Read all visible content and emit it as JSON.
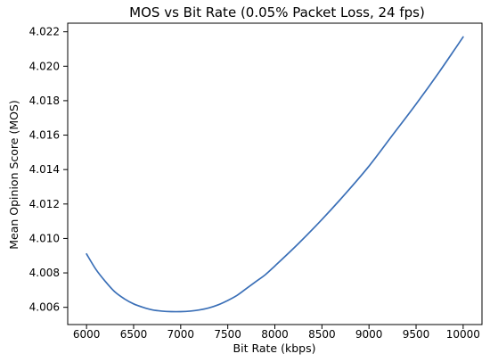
{
  "chart_data": {
    "type": "line",
    "title": "MOS vs Bit Rate (0.05% Packet Loss, 24 fps)",
    "xlabel": "Bit Rate (kbps)",
    "ylabel": "Mean Opinion Score (MOS)",
    "xlim": [
      5800,
      10200
    ],
    "ylim": [
      4.005,
      4.0225
    ],
    "xticks": [
      "6000",
      "6500",
      "7000",
      "7500",
      "8000",
      "8500",
      "9000",
      "9500",
      "10000"
    ],
    "yticks": [
      "4.006",
      "4.008",
      "4.010",
      "4.012",
      "4.014",
      "4.016",
      "4.018",
      "4.020",
      "4.022"
    ],
    "grid": false,
    "series": [
      {
        "color": "#3a6fb7",
        "x": [
          6000,
          6100,
          6200,
          6300,
          6400,
          6500,
          6600,
          6700,
          6800,
          6900,
          7000,
          7100,
          7200,
          7300,
          7400,
          7500,
          7600,
          7700,
          7800,
          7900,
          8000,
          8250,
          8500,
          8750,
          9000,
          9250,
          9500,
          9750,
          10000
        ],
        "y": [
          4.0091,
          4.0082,
          4.0075,
          4.0069,
          4.0065,
          4.0062,
          4.006,
          4.00585,
          4.00578,
          4.00575,
          4.00575,
          4.00578,
          4.00585,
          4.00597,
          4.00615,
          4.0064,
          4.0067,
          4.0071,
          4.0075,
          4.0079,
          4.0084,
          4.0097,
          4.0111,
          4.0126,
          4.0142,
          4.016,
          4.0178,
          4.0197,
          4.0217
        ]
      }
    ]
  }
}
